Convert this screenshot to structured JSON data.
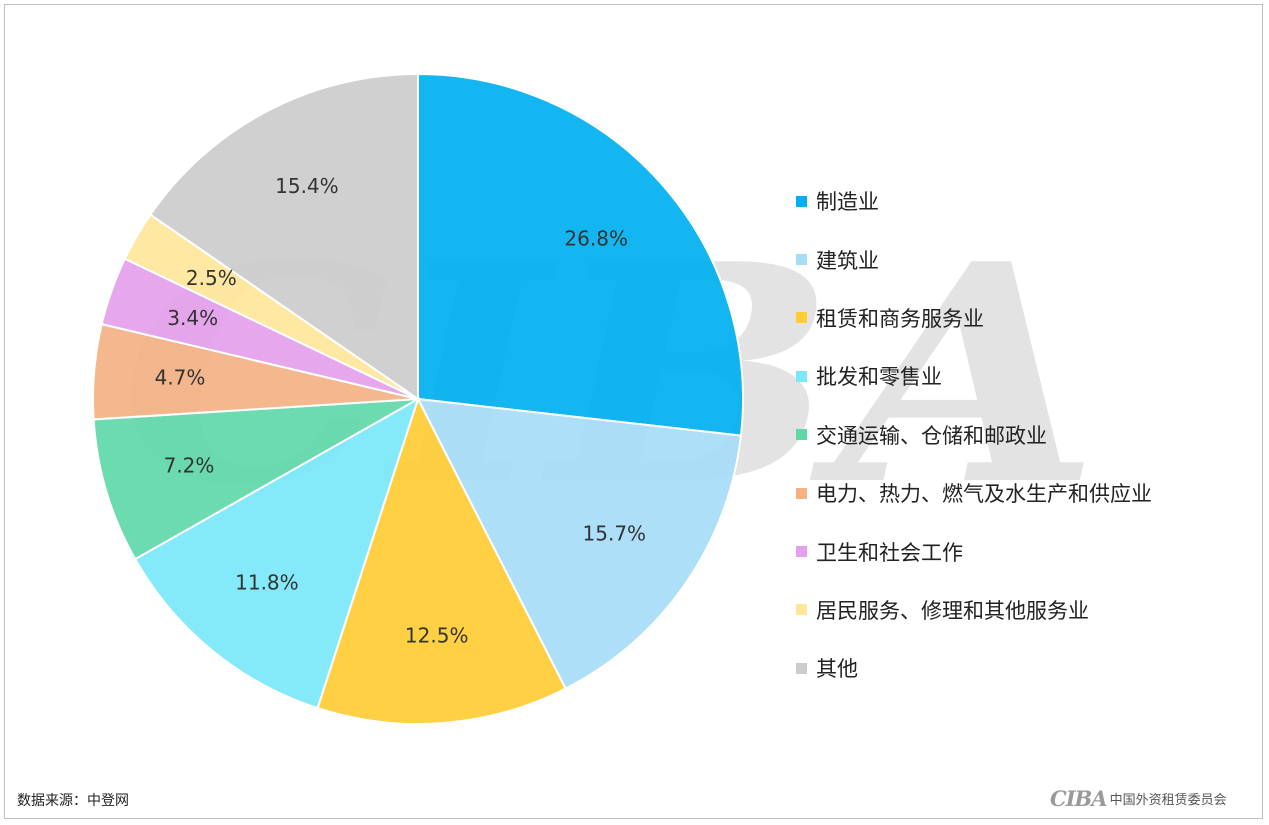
{
  "chart_data": {
    "type": "pie",
    "title": "",
    "categories": [
      "制造业",
      "建筑业",
      "租赁和商务服务业",
      "批发和零售业",
      "交通运输、仓储和邮政业",
      "电力、热力、燃气及水生产和供应业",
      "卫生和社会工作",
      "居民服务、修理和其他服务业",
      "其他"
    ],
    "values": [
      26.8,
      15.7,
      12.5,
      11.8,
      7.2,
      4.7,
      3.4,
      2.5,
      15.4
    ],
    "labels": [
      "26.8%",
      "15.7%",
      "12.5%",
      "11.8%",
      "7.2%",
      "4.7%",
      "3.4%",
      "2.5%",
      "15.4%"
    ],
    "colors": [
      "#00b0f0",
      "#a6dcf8",
      "#ffcc33",
      "#7ae8f8",
      "#5fd8a8",
      "#f4b183",
      "#e4a0ec",
      "#ffe699",
      "#cccccc"
    ],
    "legend_position": "right",
    "watermark_icon": "ciba-logo-watermark"
  },
  "footer": {
    "source": "数据来源：中登网",
    "brand_logo": "CIBA",
    "brand_name": "中国外资租赁委员会"
  }
}
